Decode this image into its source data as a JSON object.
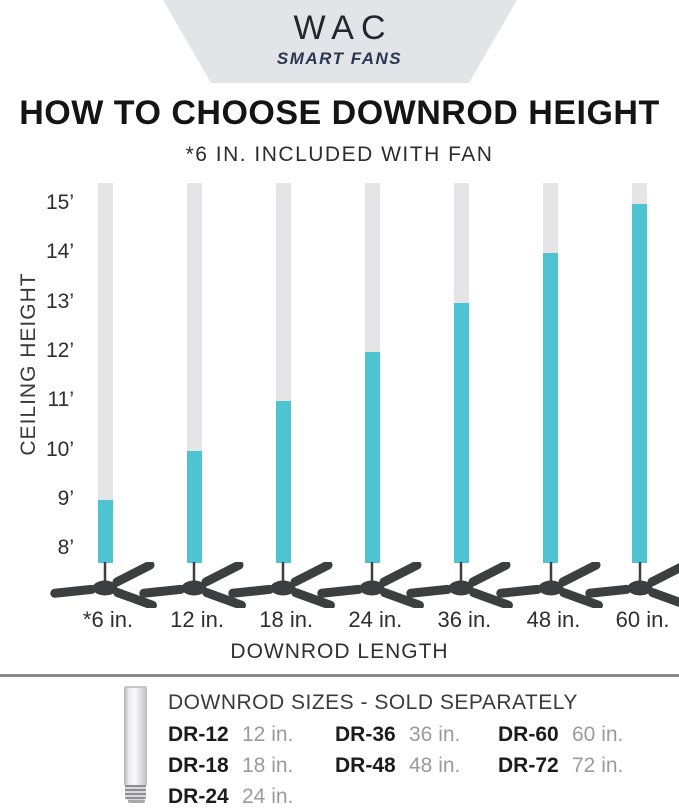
{
  "header": {
    "brand": "WAC",
    "tagline": "SMART FANS"
  },
  "title": "HOW TO CHOOSE DOWNROD HEIGHT",
  "subtitle": "*6 IN. INCLUDED WITH FAN",
  "chart_data": {
    "type": "bar",
    "title": "HOW TO CHOOSE DOWNROD HEIGHT",
    "xlabel": "DOWNROD LENGTH",
    "ylabel": "CEILING HEIGHT",
    "categories": [
      "*6 in.",
      "12 in.",
      "18 in.",
      "24 in.",
      "36 in.",
      "48 in.",
      "60 in."
    ],
    "values": [
      9,
      10,
      11,
      12,
      13,
      14,
      15
    ],
    "values_unit": "feet ceiling height per downrod length",
    "y_tick_labels": [
      "15’",
      "14’",
      "13’",
      "12’",
      "11’",
      "10’",
      "9’",
      "8’"
    ],
    "ylim": [
      8,
      15
    ],
    "grid": false,
    "legend_position": "none",
    "bar_track_color": "#e5e5e8",
    "bar_fill_color": "#4ec4d3",
    "fan_icon_color": "#3d3e40"
  },
  "legend": {
    "title": "DOWNROD SIZES - SOLD SEPARATELY",
    "columns": [
      [
        {
          "model": "DR-12",
          "size": "12 in."
        },
        {
          "model": "DR-18",
          "size": "18 in."
        },
        {
          "model": "DR-24",
          "size": "24 in."
        }
      ],
      [
        {
          "model": "DR-36",
          "size": "36 in."
        },
        {
          "model": "DR-48",
          "size": "48 in."
        }
      ],
      [
        {
          "model": "DR-60",
          "size": "60 in."
        },
        {
          "model": "DR-72",
          "size": "72 in."
        }
      ]
    ]
  },
  "colors": {
    "banner_background": "#e2e4e8",
    "accent_teal": "#4ec4d3",
    "track_gray": "#e5e5e8",
    "fan_dark": "#3d3e40",
    "divider_gray": "#87898b"
  }
}
